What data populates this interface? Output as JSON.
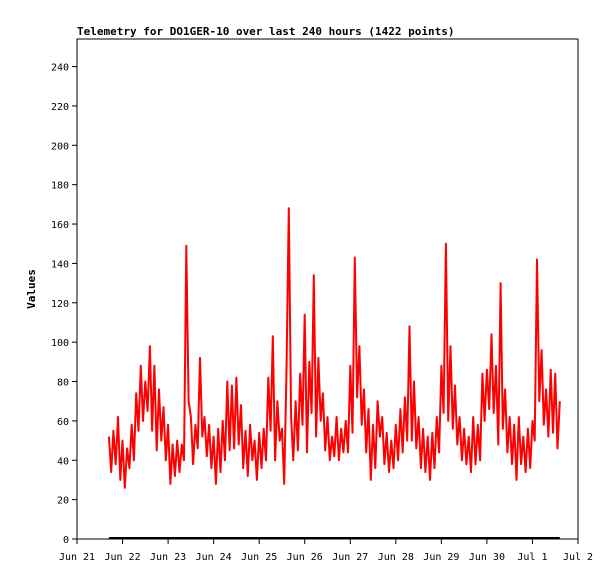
{
  "chart_data": {
    "type": "line",
    "title": "Telemetry for DO1GER-10 over last 240 hours (1422 points)",
    "xlabel": "",
    "ylabel": "Values",
    "ylim": [
      0,
      254
    ],
    "yticks": [
      0,
      20,
      40,
      60,
      80,
      100,
      120,
      140,
      160,
      180,
      200,
      220,
      240
    ],
    "x_unit": "days since Jun 21 00:00 (approx.)",
    "xlim": [
      0,
      11
    ],
    "xticks": [
      {
        "x": 0,
        "label": "Jun 21"
      },
      {
        "x": 1,
        "label": "Jun 22"
      },
      {
        "x": 2,
        "label": "Jun 23"
      },
      {
        "x": 3,
        "label": "Jun 24"
      },
      {
        "x": 4,
        "label": "Jun 25"
      },
      {
        "x": 5,
        "label": "Jun 26"
      },
      {
        "x": 6,
        "label": "Jun 27"
      },
      {
        "x": 7,
        "label": "Jun 28"
      },
      {
        "x": 8,
        "label": "Jun 29"
      },
      {
        "x": 9,
        "label": "Jun 30"
      },
      {
        "x": 10,
        "label": "Jul 1"
      },
      {
        "x": 11,
        "label": "Jul 2"
      }
    ],
    "grid": false,
    "legend": "none",
    "series": [
      {
        "name": "",
        "color": "#ff0000",
        "points": [
          [
            0.7,
            52
          ],
          [
            0.75,
            34
          ],
          [
            0.8,
            55
          ],
          [
            0.85,
            38
          ],
          [
            0.9,
            62
          ],
          [
            0.95,
            30
          ],
          [
            1.0,
            50
          ],
          [
            1.05,
            26
          ],
          [
            1.1,
            46
          ],
          [
            1.15,
            36
          ],
          [
            1.2,
            58
          ],
          [
            1.25,
            40
          ],
          [
            1.3,
            74
          ],
          [
            1.35,
            55
          ],
          [
            1.4,
            88
          ],
          [
            1.45,
            60
          ],
          [
            1.5,
            80
          ],
          [
            1.55,
            65
          ],
          [
            1.6,
            98
          ],
          [
            1.65,
            55
          ],
          [
            1.7,
            88
          ],
          [
            1.75,
            45
          ],
          [
            1.8,
            76
          ],
          [
            1.85,
            50
          ],
          [
            1.9,
            67
          ],
          [
            1.95,
            40
          ],
          [
            2.0,
            58
          ],
          [
            2.05,
            28
          ],
          [
            2.1,
            48
          ],
          [
            2.15,
            32
          ],
          [
            2.2,
            50
          ],
          [
            2.25,
            34
          ],
          [
            2.3,
            48
          ],
          [
            2.35,
            40
          ],
          [
            2.4,
            149
          ],
          [
            2.45,
            70
          ],
          [
            2.5,
            62
          ],
          [
            2.55,
            38
          ],
          [
            2.6,
            58
          ],
          [
            2.65,
            46
          ],
          [
            2.7,
            92
          ],
          [
            2.75,
            52
          ],
          [
            2.8,
            62
          ],
          [
            2.85,
            42
          ],
          [
            2.9,
            58
          ],
          [
            2.95,
            36
          ],
          [
            3.0,
            52
          ],
          [
            3.05,
            28
          ],
          [
            3.1,
            56
          ],
          [
            3.15,
            34
          ],
          [
            3.2,
            60
          ],
          [
            3.25,
            40
          ],
          [
            3.3,
            80
          ],
          [
            3.35,
            45
          ],
          [
            3.4,
            78
          ],
          [
            3.45,
            46
          ],
          [
            3.5,
            82
          ],
          [
            3.55,
            48
          ],
          [
            3.6,
            68
          ],
          [
            3.65,
            36
          ],
          [
            3.7,
            55
          ],
          [
            3.75,
            32
          ],
          [
            3.8,
            58
          ],
          [
            3.85,
            40
          ],
          [
            3.9,
            50
          ],
          [
            3.95,
            30
          ],
          [
            4.0,
            54
          ],
          [
            4.05,
            36
          ],
          [
            4.1,
            56
          ],
          [
            4.15,
            40
          ],
          [
            4.2,
            82
          ],
          [
            4.25,
            55
          ],
          [
            4.3,
            103
          ],
          [
            4.35,
            40
          ],
          [
            4.4,
            70
          ],
          [
            4.45,
            50
          ],
          [
            4.5,
            56
          ],
          [
            4.55,
            28
          ],
          [
            4.6,
            86
          ],
          [
            4.65,
            168
          ],
          [
            4.7,
            62
          ],
          [
            4.75,
            40
          ],
          [
            4.8,
            70
          ],
          [
            4.85,
            45
          ],
          [
            4.9,
            84
          ],
          [
            4.95,
            58
          ],
          [
            5.0,
            114
          ],
          [
            5.05,
            44
          ],
          [
            5.1,
            90
          ],
          [
            5.15,
            64
          ],
          [
            5.2,
            134
          ],
          [
            5.25,
            52
          ],
          [
            5.3,
            92
          ],
          [
            5.35,
            60
          ],
          [
            5.4,
            74
          ],
          [
            5.45,
            45
          ],
          [
            5.5,
            62
          ],
          [
            5.55,
            40
          ],
          [
            5.6,
            52
          ],
          [
            5.65,
            42
          ],
          [
            5.7,
            62
          ],
          [
            5.75,
            40
          ],
          [
            5.8,
            56
          ],
          [
            5.85,
            44
          ],
          [
            5.9,
            60
          ],
          [
            5.95,
            44
          ],
          [
            6.0,
            88
          ],
          [
            6.05,
            54
          ],
          [
            6.1,
            143
          ],
          [
            6.15,
            72
          ],
          [
            6.2,
            98
          ],
          [
            6.25,
            58
          ],
          [
            6.3,
            76
          ],
          [
            6.35,
            44
          ],
          [
            6.4,
            66
          ],
          [
            6.45,
            30
          ],
          [
            6.5,
            58
          ],
          [
            6.55,
            36
          ],
          [
            6.6,
            70
          ],
          [
            6.65,
            52
          ],
          [
            6.7,
            62
          ],
          [
            6.75,
            38
          ],
          [
            6.8,
            54
          ],
          [
            6.85,
            34
          ],
          [
            6.9,
            50
          ],
          [
            6.95,
            36
          ],
          [
            7.0,
            58
          ],
          [
            7.05,
            40
          ],
          [
            7.1,
            66
          ],
          [
            7.15,
            44
          ],
          [
            7.2,
            72
          ],
          [
            7.25,
            50
          ],
          [
            7.3,
            108
          ],
          [
            7.35,
            50
          ],
          [
            7.4,
            80
          ],
          [
            7.45,
            46
          ],
          [
            7.5,
            62
          ],
          [
            7.55,
            36
          ],
          [
            7.6,
            56
          ],
          [
            7.65,
            34
          ],
          [
            7.7,
            52
          ],
          [
            7.75,
            30
          ],
          [
            7.8,
            54
          ],
          [
            7.85,
            36
          ],
          [
            7.9,
            62
          ],
          [
            7.95,
            44
          ],
          [
            8.0,
            88
          ],
          [
            8.05,
            64
          ],
          [
            8.1,
            150
          ],
          [
            8.15,
            60
          ],
          [
            8.2,
            98
          ],
          [
            8.25,
            56
          ],
          [
            8.3,
            78
          ],
          [
            8.35,
            48
          ],
          [
            8.4,
            62
          ],
          [
            8.45,
            40
          ],
          [
            8.5,
            56
          ],
          [
            8.55,
            38
          ],
          [
            8.6,
            52
          ],
          [
            8.65,
            34
          ],
          [
            8.7,
            62
          ],
          [
            8.75,
            38
          ],
          [
            8.8,
            58
          ],
          [
            8.85,
            40
          ],
          [
            8.9,
            84
          ],
          [
            8.95,
            60
          ],
          [
            9.0,
            86
          ],
          [
            9.05,
            66
          ],
          [
            9.1,
            104
          ],
          [
            9.15,
            64
          ],
          [
            9.2,
            88
          ],
          [
            9.25,
            48
          ],
          [
            9.3,
            130
          ],
          [
            9.35,
            56
          ],
          [
            9.4,
            76
          ],
          [
            9.45,
            44
          ],
          [
            9.5,
            62
          ],
          [
            9.55,
            38
          ],
          [
            9.6,
            58
          ],
          [
            9.65,
            30
          ],
          [
            9.7,
            62
          ],
          [
            9.75,
            38
          ],
          [
            9.8,
            52
          ],
          [
            9.85,
            34
          ],
          [
            9.9,
            56
          ],
          [
            9.95,
            36
          ],
          [
            10.0,
            60
          ],
          [
            10.05,
            50
          ],
          [
            10.1,
            142
          ],
          [
            10.15,
            70
          ],
          [
            10.2,
            96
          ],
          [
            10.25,
            58
          ],
          [
            10.3,
            76
          ],
          [
            10.35,
            52
          ],
          [
            10.4,
            86
          ],
          [
            10.45,
            54
          ],
          [
            10.5,
            84
          ],
          [
            10.55,
            46
          ],
          [
            10.6,
            70
          ]
        ]
      },
      {
        "name": "",
        "color": "#000000",
        "points": [
          [
            0.7,
            0.5
          ],
          [
            10.6,
            0.5
          ]
        ]
      }
    ]
  }
}
